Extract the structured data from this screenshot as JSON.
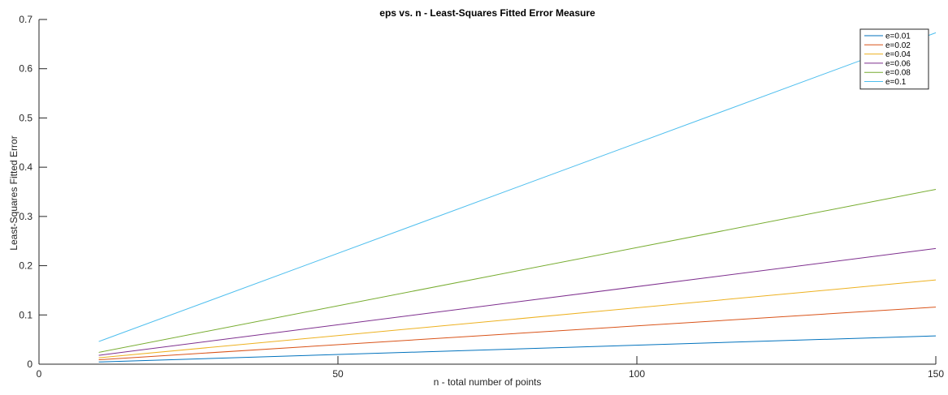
{
  "chart_data": {
    "type": "line",
    "title": "eps vs. n - Least-Squares Fitted Error Measure",
    "xlabel": "n - total number of points",
    "ylabel": "Least-Squares Fitted Error",
    "xlim": [
      0,
      150
    ],
    "ylim": [
      0,
      0.7
    ],
    "xticks": [
      0,
      50,
      100,
      150
    ],
    "xtick_labels": [
      "0",
      "50",
      "100",
      "150"
    ],
    "yticks": [
      0,
      0.1,
      0.2,
      0.3,
      0.4,
      0.5,
      0.6,
      0.7
    ],
    "ytick_labels": [
      "0",
      "0.1",
      "0.2",
      "0.3",
      "0.4",
      "0.5",
      "0.6",
      "0.7"
    ],
    "grid": false,
    "legend_position": "top-right",
    "x": [
      10,
      150
    ],
    "series": [
      {
        "name": "e=0.01",
        "color": "#0072BD",
        "values": [
          0.0045,
          0.0575
        ]
      },
      {
        "name": "e=0.02",
        "color": "#D95319",
        "values": [
          0.009,
          0.116
        ]
      },
      {
        "name": "e=0.04",
        "color": "#EDB120",
        "values": [
          0.013,
          0.171
        ]
      },
      {
        "name": "e=0.06",
        "color": "#7E2F8E",
        "values": [
          0.018,
          0.235
        ]
      },
      {
        "name": "e=0.08",
        "color": "#77AC30",
        "values": [
          0.024,
          0.355
        ]
      },
      {
        "name": "e=0.1",
        "color": "#4DBEEE",
        "values": [
          0.046,
          0.673
        ]
      }
    ]
  }
}
